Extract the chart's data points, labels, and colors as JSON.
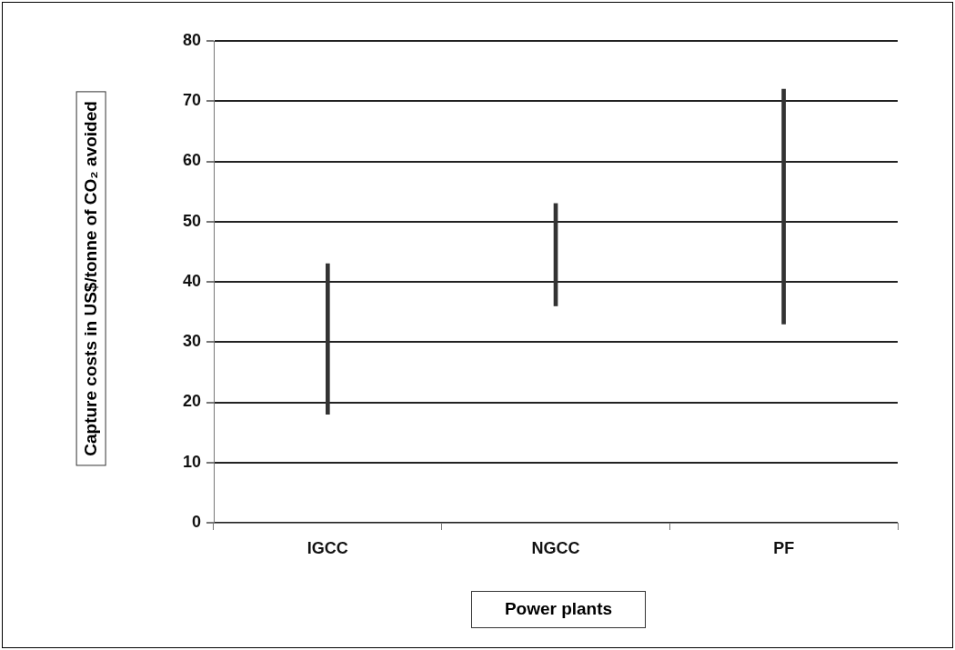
{
  "chart_data": {
    "type": "bar",
    "categories": [
      "IGCC",
      "NGCC",
      "PF"
    ],
    "base": [
      18,
      36,
      33
    ],
    "values": [
      25,
      17,
      39
    ],
    "color": "#333333",
    "ylim": [
      0,
      80
    ],
    "yticks": [
      0,
      10,
      20,
      30,
      40,
      50,
      60,
      70,
      80
    ],
    "grid": "y",
    "legend": false,
    "xlabel": "Power plants",
    "ylabel": "Capture costs in US$/tonne of CO₂ avoided"
  }
}
